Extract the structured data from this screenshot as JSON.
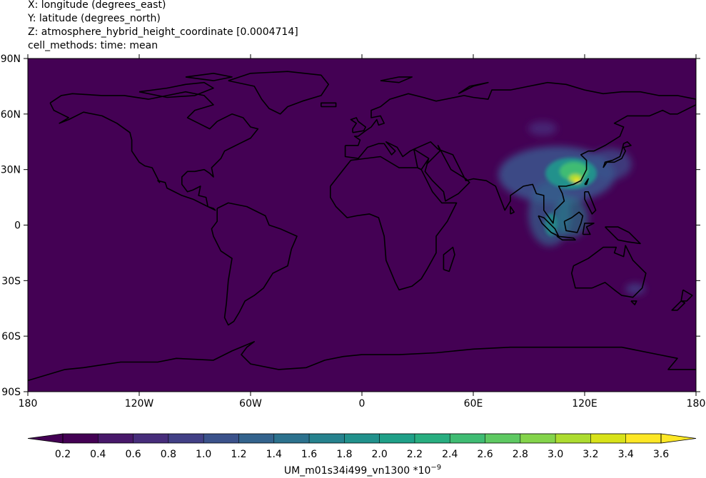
{
  "header": {
    "x_line": "X: longitude  (degrees_east)",
    "y_line": "Y: latitude  (degrees_north)",
    "z_line": "Z: atmosphere_hybrid_height_coordinate [0.0004714]",
    "cell_methods_line": "cell_methods: time: mean"
  },
  "map": {
    "projection": "cylindrical",
    "lon_range": [
      -180,
      180
    ],
    "lat_range": [
      -90,
      90
    ],
    "background_color": "#440154",
    "coastline_color": "#000000",
    "x_ticks": [
      {
        "value": -180,
        "label": "180"
      },
      {
        "value": -120,
        "label": "120W"
      },
      {
        "value": -60,
        "label": "60W"
      },
      {
        "value": 0,
        "label": "0"
      },
      {
        "value": 60,
        "label": "60E"
      },
      {
        "value": 120,
        "label": "120E"
      },
      {
        "value": 180,
        "label": "180"
      }
    ],
    "y_ticks": [
      {
        "value": 90,
        "label": "90N"
      },
      {
        "value": 60,
        "label": "60N"
      },
      {
        "value": 30,
        "label": "30N"
      },
      {
        "value": 0,
        "label": "0"
      },
      {
        "value": -30,
        "label": "30S"
      },
      {
        "value": -60,
        "label": "60S"
      },
      {
        "value": -90,
        "label": "90S"
      }
    ]
  },
  "colorbar": {
    "label": "UM_m01s34i499_vn1300 *10",
    "exponent": "−9",
    "ticks": [
      "0.2",
      "0.4",
      "0.6",
      "0.8",
      "1.0",
      "1.2",
      "1.4",
      "1.6",
      "1.8",
      "2.0",
      "2.2",
      "2.4",
      "2.6",
      "2.8",
      "3.0",
      "3.2",
      "3.4",
      "3.6"
    ],
    "colors": [
      "#440154",
      "#48186a",
      "#472d7b",
      "#424086",
      "#3b528b",
      "#33638d",
      "#2c728e",
      "#26828e",
      "#21918c",
      "#1fa088",
      "#28ae80",
      "#3fbc73",
      "#5ec962",
      "#84d44b",
      "#addc30",
      "#d8e219",
      "#fde725"
    ],
    "extend_min_color": "#440154",
    "extend_max_color": "#fde725"
  },
  "chart_data": {
    "type": "heatmap",
    "title": "",
    "xlabel": "",
    "ylabel": "",
    "xlim": [
      -180,
      180
    ],
    "ylim": [
      -90,
      90
    ],
    "background_value": 0.1,
    "features": [
      {
        "name": "",
        "lon": 100,
        "lat": 33,
        "value": 1.2
      },
      {
        "name": "",
        "lon": 112,
        "lat": 30,
        "value": 2.2
      },
      {
        "name": "",
        "lon": 116,
        "lat": 28,
        "value": 2.8
      },
      {
        "name": "",
        "lon": 116,
        "lat": 24,
        "value": 3.6
      },
      {
        "name": "",
        "lon": 103,
        "lat": 5,
        "value": 1.8
      },
      {
        "name": "",
        "lon": 110,
        "lat": -3,
        "value": 1.0
      }
    ]
  }
}
